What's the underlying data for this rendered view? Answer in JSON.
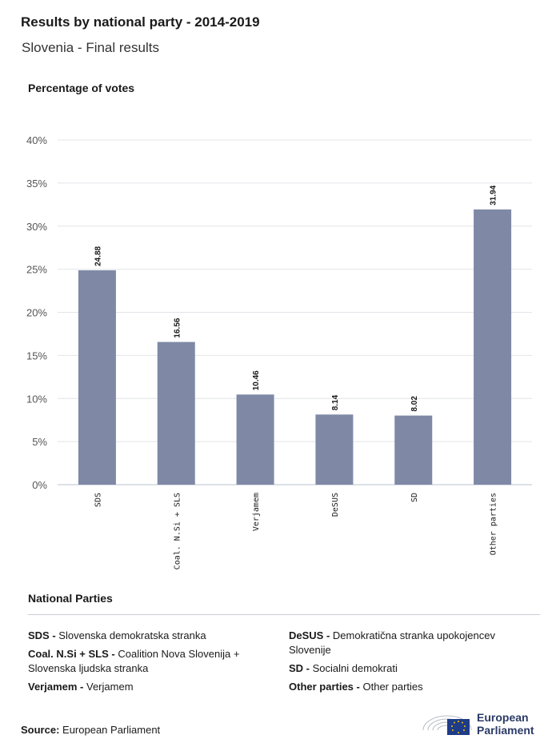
{
  "header": {
    "title": "Results by national party - 2014-2019",
    "subtitle": "Slovenia - Final results",
    "ylabel": "Percentage of votes"
  },
  "chart_data": {
    "type": "bar",
    "categories": [
      "SDS",
      "Coal. N.Si + SLS",
      "Verjamem",
      "DeSUS",
      "SD",
      "Other parties"
    ],
    "values": [
      24.88,
      16.56,
      10.46,
      8.14,
      8.02,
      31.94
    ],
    "value_labels": [
      "24.88",
      "16.56",
      "10.46",
      "8.14",
      "8.02",
      "31.94"
    ],
    "ylim": [
      0,
      40
    ],
    "yticks": [
      "0%",
      "5%",
      "10%",
      "15%",
      "20%",
      "25%",
      "30%",
      "35%",
      "40%"
    ],
    "ytick_values": [
      0,
      5,
      10,
      15,
      20,
      25,
      30,
      35,
      40
    ],
    "grid": true,
    "bar_color": "#7f89a6"
  },
  "legend": {
    "title": "National Parties",
    "left": [
      {
        "abbr": "SDS -",
        "name": "Slovenska demokratska stranka"
      },
      {
        "abbr": "Coal. N.Si + SLS -",
        "name": "Coalition Nova Slovenija + Slovenska ljudska stranka"
      },
      {
        "abbr": "Verjamem -",
        "name": "Verjamem"
      }
    ],
    "right": [
      {
        "abbr": "DeSUS -",
        "name": "Demokratična stranka upokojencev Slovenije"
      },
      {
        "abbr": "SD -",
        "name": "Socialni demokrati"
      },
      {
        "abbr": "Other parties -",
        "name": "Other parties"
      }
    ]
  },
  "footer": {
    "source_label": "Source:",
    "source_value": "European Parliament",
    "logo_line1": "European",
    "logo_line2": "Parliament",
    "logo_color": "#2b3a67"
  }
}
